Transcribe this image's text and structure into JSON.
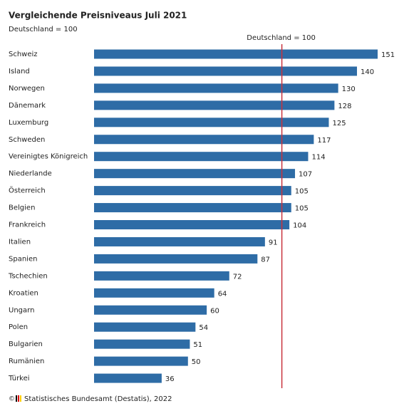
{
  "chart_data": {
    "type": "bar",
    "orientation": "horizontal",
    "title": "Vergleichende Preisniveaus Juli 2021",
    "subtitle": "Deutschland = 100",
    "categories": [
      "Schweiz",
      "Island",
      "Norwegen",
      "Dänemark",
      "Luxemburg",
      "Schweden",
      "Vereinigtes Königreich",
      "Niederlande",
      "Österreich",
      "Belgien",
      "Frankreich",
      "Italien",
      "Spanien",
      "Tschechien",
      "Kroatien",
      "Ungarn",
      "Polen",
      "Bulgarien",
      "Rumänien",
      "Türkei"
    ],
    "values": [
      151,
      140,
      130,
      128,
      125,
      117,
      114,
      107,
      105,
      105,
      104,
      91,
      87,
      72,
      64,
      60,
      54,
      51,
      50,
      36
    ],
    "color": "#2e6ca6",
    "reference_line": {
      "value": 100,
      "label": "Deutschland = 100",
      "color": "#c8323c"
    },
    "source": "Statistisches Bundesamt (Destatis), 2022"
  }
}
